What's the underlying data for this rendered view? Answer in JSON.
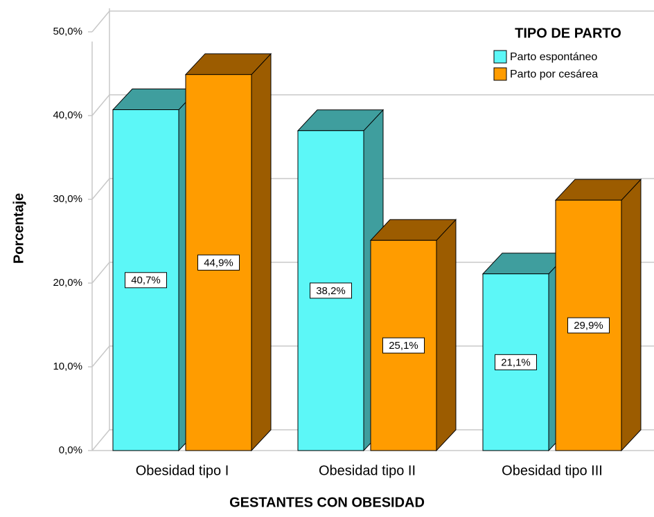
{
  "chart_data": {
    "type": "bar3d",
    "x_label": "GESTANTES CON OBESIDAD",
    "y_label": "Porcentaje",
    "legend_title": "TIPO DE PARTO",
    "legend": "upper right",
    "grid": true,
    "categories": [
      "Obesidad tipo I",
      "Obesidad tipo II",
      "Obesidad tipo III"
    ],
    "series": [
      {
        "name": "Parto espontáneo",
        "color": "#5cf7f7",
        "dark": "#3f9e9e",
        "values": [
          40.7,
          38.2,
          21.1
        ],
        "value_labels": [
          "40,7%",
          "38,2%",
          "21,1%"
        ]
      },
      {
        "name": "Parto por cesárea",
        "color": "#ff9c00",
        "dark": "#9c5c00",
        "values": [
          44.9,
          25.1,
          29.9
        ],
        "value_labels": [
          "44,9%",
          "25,1%",
          "29,9%"
        ]
      }
    ],
    "ylim": [
      0,
      50
    ],
    "yticks": [
      {
        "value": 0,
        "label": "0,0%"
      },
      {
        "value": 10,
        "label": "10,0%"
      },
      {
        "value": 20,
        "label": "20,0%"
      },
      {
        "value": 30,
        "label": "30,0%"
      },
      {
        "value": 40,
        "label": "40,0%"
      },
      {
        "value": 50,
        "label": "50,0%"
      }
    ]
  }
}
